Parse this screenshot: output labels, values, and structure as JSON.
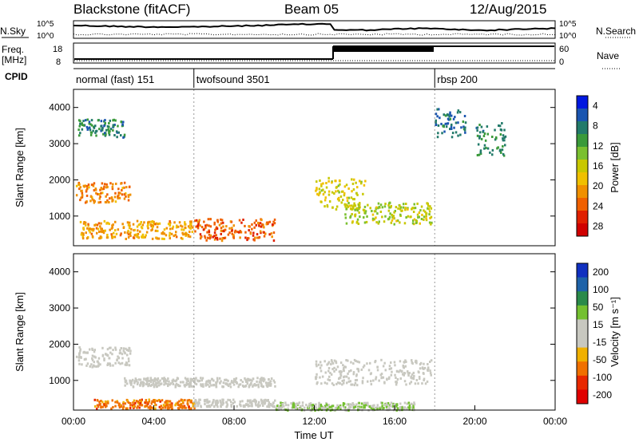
{
  "header": {
    "radar_title": "Blackstone (fitACF)",
    "beam": "Beam 05",
    "date": "12/Aug/2015"
  },
  "top_panels": {
    "nsky_label": "N.Sky",
    "nsky_ticks": [
      "10^5",
      "10^0"
    ],
    "nsearch_label": "N.Search",
    "nsearch_ticks": [
      "10^5",
      "10^0"
    ],
    "freq_label": "Freq.",
    "freq_unit": "[MHz]",
    "freq_ticks": [
      "18",
      "8"
    ],
    "nave_label": "Nave",
    "nave_ticks": [
      "60",
      "0"
    ],
    "cpid_label": "CPID",
    "cpid_segments": [
      {
        "label": "normal (fast) 151",
        "start_h": 0,
        "end_h": 6
      },
      {
        "label": "twofsound 3501",
        "start_h": 6,
        "end_h": 18
      },
      {
        "label": "rbsp 200",
        "start_h": 18,
        "end_h": 24
      }
    ]
  },
  "chart_data": [
    {
      "type": "heatmap",
      "panel": "power",
      "ylabel": "Slant Range [km]",
      "ylim": [
        180,
        4500
      ],
      "y_ticks": [
        "1000",
        "2000",
        "3000",
        "4000"
      ],
      "colorbar_label": "Power [dB]",
      "colorbar_ticks": [
        "4",
        "8",
        "12",
        "16",
        "20",
        "24",
        "28"
      ],
      "colorbar_colors": [
        "#0018e0",
        "#1a55b0",
        "#227a6a",
        "#3a9a3a",
        "#7ac030",
        "#c8c800",
        "#f0c000",
        "#f09000",
        "#f06000",
        "#e02000",
        "#d00000"
      ],
      "regions": [
        {
          "t0": 0.1,
          "t1": 2.8,
          "r0": 1400,
          "r1": 1950,
          "power": 22
        },
        {
          "t0": 0.3,
          "t1": 6.0,
          "r0": 400,
          "r1": 900,
          "power": 20
        },
        {
          "t0": 6.0,
          "t1": 10.0,
          "r0": 350,
          "r1": 950,
          "power": 24
        },
        {
          "t0": 12.0,
          "t1": 14.5,
          "r0": 1200,
          "r1": 2100,
          "power": 16
        },
        {
          "t0": 13.5,
          "t1": 17.8,
          "r0": 800,
          "r1": 1400,
          "power": 14
        },
        {
          "t0": 0.2,
          "t1": 2.5,
          "r0": 3200,
          "r1": 3700,
          "power": 6
        },
        {
          "t0": 18.0,
          "t1": 19.5,
          "r0": 3200,
          "r1": 4000,
          "power": 5
        },
        {
          "t0": 20.0,
          "t1": 21.5,
          "r0": 2700,
          "r1": 3600,
          "power": 7
        }
      ]
    },
    {
      "type": "heatmap",
      "panel": "velocity",
      "ylabel": "Slant Range [km]",
      "xlabel": "Time UT",
      "ylim": [
        180,
        4500
      ],
      "y_ticks": [
        "1000",
        "2000",
        "3000",
        "4000"
      ],
      "x_ticks": [
        "00:00",
        "04:00",
        "08:00",
        "12:00",
        "16:00",
        "20:00",
        "00:00"
      ],
      "colorbar_label": "Velocity [m s⁻¹]",
      "colorbar_ticks": [
        "200",
        "100",
        "50",
        "15",
        "-15",
        "-50",
        "-100",
        "-200"
      ],
      "colorbar_colors": [
        "#1030c0",
        "#1e62a8",
        "#2a8a4a",
        "#74c030",
        "#c8c8c0",
        "#c8c8c0",
        "#f0b000",
        "#f07000",
        "#e82800",
        "#e00000"
      ],
      "regions": [
        {
          "t0": 0.1,
          "t1": 2.8,
          "r0": 1400,
          "r1": 1950,
          "velocity": 0
        },
        {
          "t0": 2.5,
          "t1": 10.0,
          "r0": 850,
          "r1": 1100,
          "velocity": 0
        },
        {
          "t0": 1.0,
          "t1": 6.0,
          "r0": 250,
          "r1": 500,
          "velocity": -120
        },
        {
          "t0": 6.0,
          "t1": 10.0,
          "r0": 300,
          "r1": 500,
          "velocity": 0
        },
        {
          "t0": 12.0,
          "t1": 17.8,
          "r0": 900,
          "r1": 1600,
          "velocity": 0
        },
        {
          "t0": 10.0,
          "t1": 17.0,
          "r0": 200,
          "r1": 420,
          "velocity": 40
        }
      ]
    }
  ]
}
